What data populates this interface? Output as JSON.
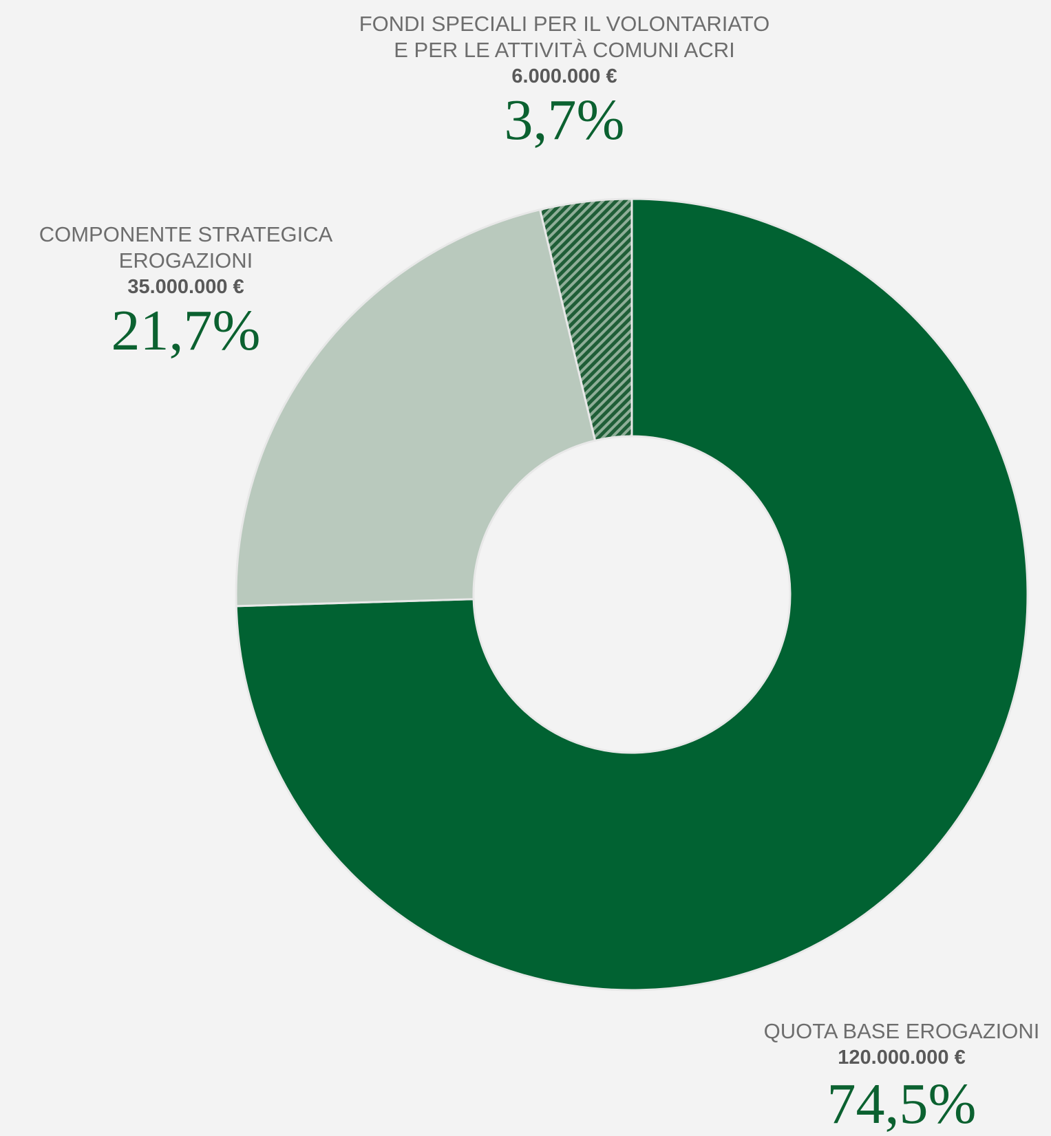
{
  "chart_data": {
    "type": "pie",
    "style": "donut",
    "title": "",
    "slices": [
      {
        "label_lines": [
          "QUOTA BASE EROGAZIONI"
        ],
        "amount": "120.000.000 €",
        "value": 120000000,
        "percent": "74,5%",
        "color": "#016232",
        "pattern": "solid"
      },
      {
        "label_lines": [
          "COMPONENTE STRATEGICA",
          "EROGAZIONI"
        ],
        "amount": "35.000.000 €",
        "value": 35000000,
        "percent": "21,7%",
        "color": "#b9c9bd",
        "pattern": "solid"
      },
      {
        "label_lines": [
          "FONDI SPECIALI PER IL VOLONTARIATO",
          "E PER LE ATTIVITÀ COMUNI ACRI"
        ],
        "amount": "6.000.000 €",
        "value": 6000000,
        "percent": "3,7%",
        "color": "#2f6b45",
        "pattern": "hatched"
      }
    ],
    "start": "top, clockwise",
    "colors": {
      "background": "#f3f3f3",
      "percent_text": "#0b6130",
      "label_text": "#6d6d6d",
      "amount_text": "#595959",
      "slice_border": "#e8e8e8"
    }
  }
}
